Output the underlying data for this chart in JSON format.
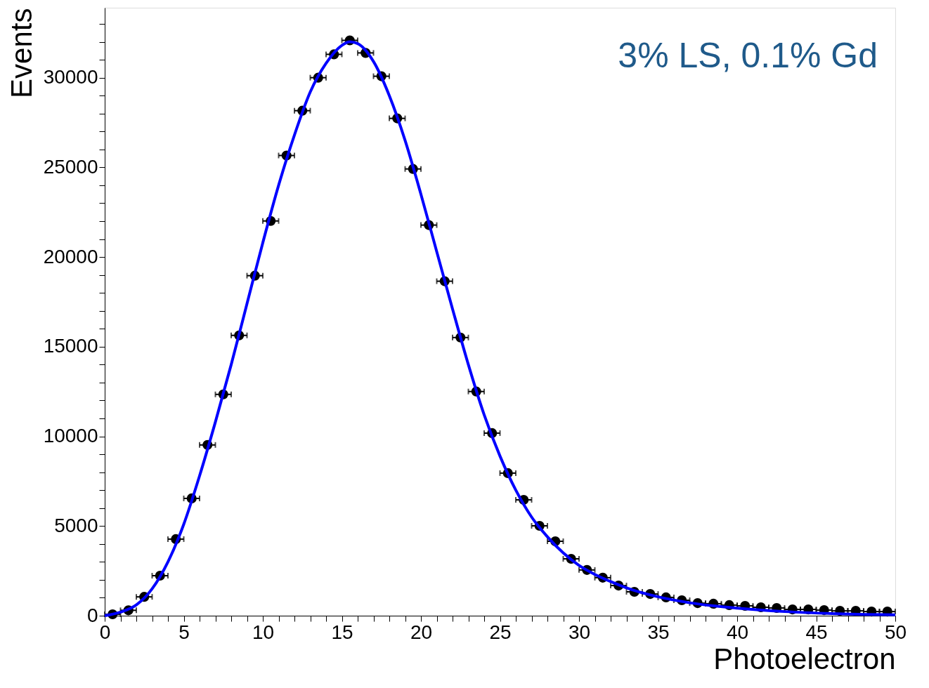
{
  "chart_data": {
    "type": "scatter",
    "xlabel": "Photoelectron",
    "ylabel": "Events",
    "annotations": [
      "3% LS, 0.1% Gd"
    ],
    "xlim": [
      0,
      50
    ],
    "ylim": [
      0,
      33900
    ],
    "xticks": [
      0,
      {
        "value": 1,
        "label": null
      },
      {
        "value": 2,
        "label": null
      },
      {
        "value": 3,
        "label": null
      },
      {
        "value": 4,
        "label": null
      },
      5,
      {
        "value": 6,
        "label": null
      },
      {
        "value": 7,
        "label": null
      },
      {
        "value": 8,
        "label": null
      },
      {
        "value": 9,
        "label": null
      },
      10,
      {
        "value": 11,
        "label": null
      },
      {
        "value": 12,
        "label": null
      },
      {
        "value": 13,
        "label": null
      },
      {
        "value": 14,
        "label": null
      },
      15,
      {
        "value": 16,
        "label": null
      },
      {
        "value": 17,
        "label": null
      },
      {
        "value": 18,
        "label": null
      },
      {
        "value": 19,
        "label": null
      },
      20,
      {
        "value": 21,
        "label": null
      },
      {
        "value": 22,
        "label": null
      },
      {
        "value": 23,
        "label": null
      },
      {
        "value": 24,
        "label": null
      },
      25,
      {
        "value": 26,
        "label": null
      },
      {
        "value": 27,
        "label": null
      },
      {
        "value": 28,
        "label": null
      },
      {
        "value": 29,
        "label": null
      },
      30,
      {
        "value": 31,
        "label": null
      },
      {
        "value": 32,
        "label": null
      },
      {
        "value": 33,
        "label": null
      },
      {
        "value": 34,
        "label": null
      },
      35,
      {
        "value": 36,
        "label": null
      },
      {
        "value": 37,
        "label": null
      },
      {
        "value": 38,
        "label": null
      },
      {
        "value": 39,
        "label": null
      },
      40,
      {
        "value": 41,
        "label": null
      },
      {
        "value": 42,
        "label": null
      },
      {
        "value": 43,
        "label": null
      },
      {
        "value": 44,
        "label": null
      },
      45,
      {
        "value": 46,
        "label": null
      },
      {
        "value": 47,
        "label": null
      },
      {
        "value": 48,
        "label": null
      },
      {
        "value": 49,
        "label": null
      },
      50
    ],
    "yticks": [
      0,
      {
        "value": 1000,
        "label": null
      },
      {
        "value": 2000,
        "label": null
      },
      {
        "value": 3000,
        "label": null
      },
      {
        "value": 4000,
        "label": null
      },
      5000,
      {
        "value": 6000,
        "label": null
      },
      {
        "value": 7000,
        "label": null
      },
      {
        "value": 8000,
        "label": null
      },
      {
        "value": 9000,
        "label": null
      },
      10000,
      {
        "value": 11000,
        "label": null
      },
      {
        "value": 12000,
        "label": null
      },
      {
        "value": 13000,
        "label": null
      },
      {
        "value": 14000,
        "label": null
      },
      15000,
      {
        "value": 16000,
        "label": null
      },
      {
        "value": 17000,
        "label": null
      },
      {
        "value": 18000,
        "label": null
      },
      {
        "value": 19000,
        "label": null
      },
      20000,
      {
        "value": 21000,
        "label": null
      },
      {
        "value": 22000,
        "label": null
      },
      {
        "value": 23000,
        "label": null
      },
      {
        "value": 24000,
        "label": null
      },
      25000,
      {
        "value": 26000,
        "label": null
      },
      {
        "value": 27000,
        "label": null
      },
      {
        "value": 28000,
        "label": null
      },
      {
        "value": 29000,
        "label": null
      },
      30000,
      {
        "value": 31000,
        "label": null
      },
      {
        "value": 32000,
        "label": null
      },
      {
        "value": 33000,
        "label": null
      }
    ],
    "grid": false,
    "legend": false,
    "marker": "circle",
    "series": [
      {
        "color": "#000000",
        "x": [
          0.5,
          1.5,
          2.5,
          3.5,
          4.5,
          5.5,
          6.5,
          7.5,
          8.5,
          9.5,
          10.5,
          11.5,
          12.5,
          13.5,
          14.5,
          15.5,
          16.5,
          17.5,
          18.5,
          19.5,
          20.5,
          21.5,
          22.5,
          23.5,
          24.5,
          25.5,
          26.5,
          27.5,
          28.5,
          29.5,
          30.5,
          31.5,
          32.5,
          33.5,
          34.5,
          35.5,
          36.5,
          37.5,
          38.5,
          39.5,
          40.5,
          41.5,
          42.5,
          43.5,
          44.5,
          45.5,
          46.5,
          47.5,
          48.5,
          49.5
        ],
        "values": [
          80,
          300,
          1050,
          2230,
          4270,
          6540,
          9520,
          12340,
          15630,
          18960,
          22010,
          25660,
          28160,
          30000,
          31300,
          32080,
          31380,
          30080,
          27730,
          24910,
          21780,
          18650,
          15510,
          12500,
          10180,
          7950,
          6460,
          5010,
          4150,
          3170,
          2550,
          2120,
          1680,
          1330,
          1210,
          1020,
          860,
          700,
          670,
          590,
          550,
          470,
          430,
          350,
          350,
          310,
          270,
          270,
          230,
          230
        ],
        "xerrors": [
          0.5,
          0.5,
          0.5,
          0.5,
          0.5,
          0.5,
          0.5,
          0.5,
          0.5,
          0.5,
          0.5,
          0.5,
          0.5,
          0.5,
          0.5,
          0.5,
          0.5,
          0.5,
          0.5,
          0.5,
          0.5,
          0.5,
          0.5,
          0.5,
          0.5,
          0.5,
          0.5,
          0.5,
          0.5,
          0.5,
          0.5,
          0.5,
          0.5,
          0.5,
          0.5,
          0.5,
          0.5,
          0.5,
          0.5,
          0.5,
          0.5,
          0.5,
          0.5,
          0.5,
          0.5,
          0.5,
          0.5,
          0.5,
          0.5,
          0.5
        ]
      },
      {
        "type": "line",
        "color": "#0000ff",
        "marker": "none",
        "line_style": "solid",
        "x": [
          0,
          1,
          2,
          3,
          4,
          5,
          6,
          7,
          8,
          9,
          10,
          11,
          12,
          13,
          14,
          15,
          15.5,
          16,
          17,
          18,
          19,
          20,
          21,
          22,
          23,
          24,
          25,
          26,
          27,
          28,
          29,
          30,
          31,
          32,
          33,
          35,
          37,
          40,
          43,
          46,
          50
        ],
        "values": [
          0,
          200,
          600,
          1500,
          3000,
          5100,
          7800,
          10800,
          14000,
          17400,
          20800,
          24000,
          26800,
          29200,
          30800,
          31800,
          32000,
          31900,
          30900,
          29000,
          26500,
          23500,
          20300,
          17100,
          14000,
          11200,
          8900,
          7000,
          5500,
          4400,
          3500,
          2800,
          2300,
          1900,
          1550,
          1050,
          720,
          420,
          230,
          120,
          50
        ]
      }
    ]
  }
}
